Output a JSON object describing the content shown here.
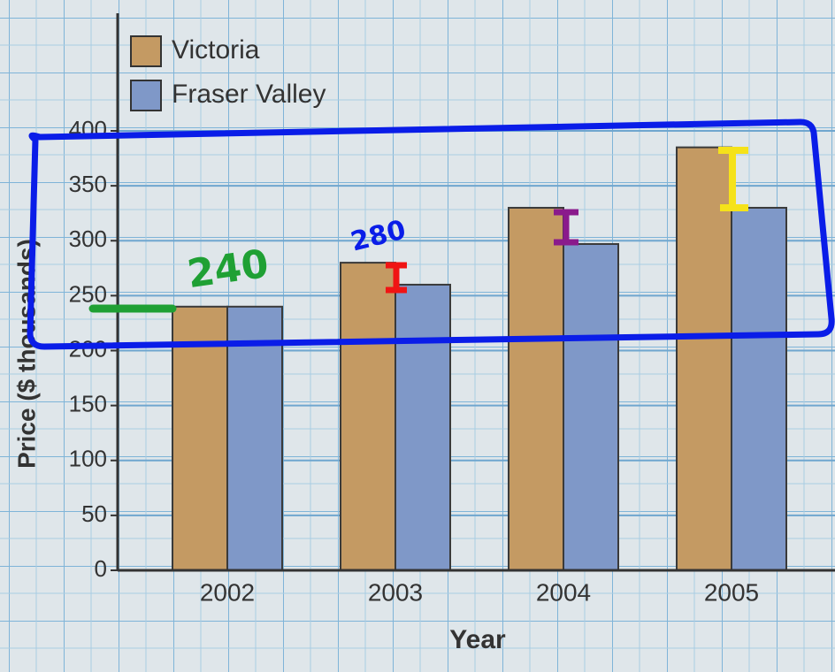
{
  "chart_data": {
    "type": "bar",
    "x_label": "Year",
    "y_label": "Price ($ thousands)",
    "categories": [
      "2002",
      "2003",
      "2004",
      "2005"
    ],
    "series": [
      {
        "name": "Victoria",
        "color": "#c49a63",
        "values": [
          240,
          280,
          330,
          385
        ]
      },
      {
        "name": "Fraser Valley",
        "color": "#7f98c8",
        "values": [
          240,
          260,
          297,
          330
        ]
      }
    ],
    "ylim": [
      0,
      400
    ],
    "yticks": [
      0,
      50,
      100,
      150,
      200,
      250,
      300,
      350,
      400
    ],
    "grid": true,
    "legend": "top-left",
    "annotations": [
      "240",
      "280"
    ]
  }
}
